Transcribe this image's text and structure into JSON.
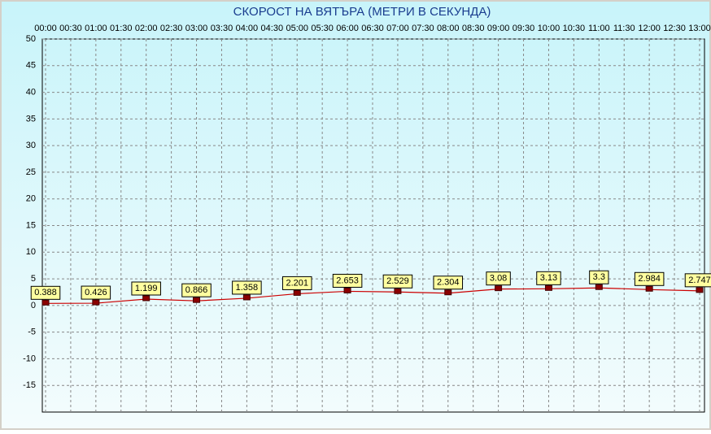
{
  "chart_data": {
    "type": "line",
    "title": "СКОРОСТ НА ВЯТЪРА (МЕТРИ В СЕКУНДА)",
    "categories": [
      "00:00",
      "00:30",
      "01:00",
      "01:30",
      "02:00",
      "02:30",
      "03:00",
      "03:30",
      "04:00",
      "04:30",
      "05:00",
      "05:30",
      "06:00",
      "06:30",
      "07:00",
      "07:30",
      "08:00",
      "08:30",
      "09:00",
      "09:30",
      "10:00",
      "10:30",
      "11:00",
      "11:30",
      "12:00",
      "12:30",
      "13:00"
    ],
    "series": [
      {
        "color": "#cc0000",
        "x": [
          "00:00",
          "01:00",
          "02:00",
          "03:00",
          "04:00",
          "05:00",
          "06:00",
          "07:00",
          "08:00",
          "09:00",
          "10:00",
          "11:00",
          "12:00",
          "13:00"
        ],
        "values": [
          0.388,
          0.426,
          1.199,
          0.866,
          1.358,
          2.201,
          2.653,
          2.529,
          2.304,
          3.08,
          3.13,
          3.3,
          2.984,
          2.747
        ]
      }
    ],
    "ylim": [
      -20,
      50
    ],
    "yticks": [
      -15,
      -10,
      -5,
      0,
      5,
      10,
      15,
      20,
      25,
      30,
      35,
      40,
      45,
      50
    ],
    "grid": true
  }
}
